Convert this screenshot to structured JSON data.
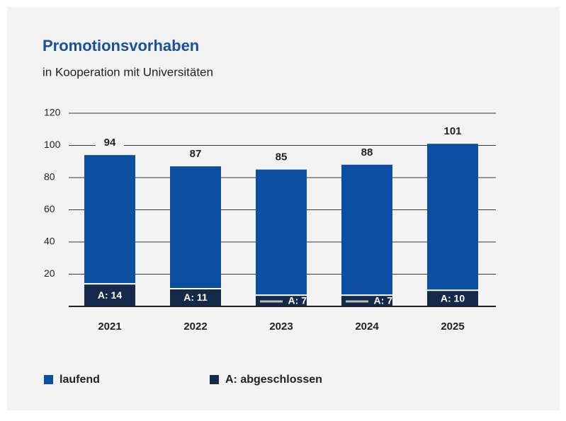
{
  "chart_data": {
    "type": "stacked_bar",
    "title": "Promotionsvorhaben",
    "subtitle": "in Kooperation mit Universitäten",
    "categories": [
      "2021",
      "2022",
      "2023",
      "2024",
      "2025"
    ],
    "series": [
      {
        "name": "A: abgeschlossen",
        "color": "#15294a",
        "values": [
          14,
          11,
          7,
          7,
          10
        ],
        "value_labels": [
          "A: 14",
          "A: 11",
          "A: 7",
          "A: 7",
          "A: 10"
        ]
      },
      {
        "name": "laufend",
        "color": "#0b4ea2",
        "values": [
          80,
          76,
          78,
          81,
          91
        ]
      }
    ],
    "totals": [
      94,
      87,
      85,
      88,
      101
    ],
    "legend_order": [
      1,
      0
    ],
    "ylim": [
      0,
      120
    ],
    "yticks": [
      20,
      40,
      60,
      80,
      100,
      120
    ],
    "grid": true
  }
}
